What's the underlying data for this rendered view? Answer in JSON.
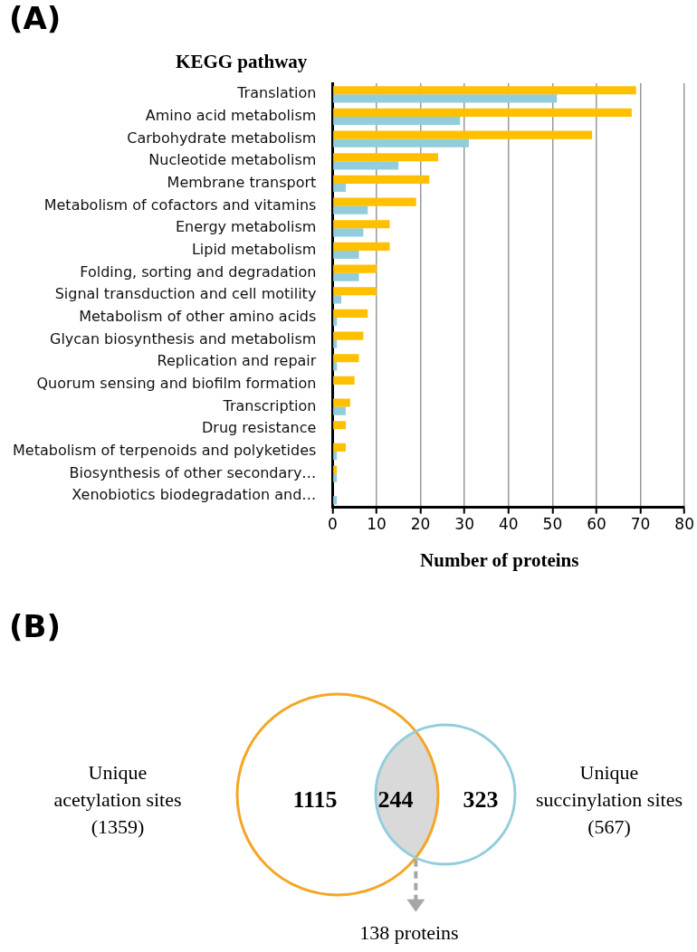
{
  "chart_data": [
    {
      "type": "bar",
      "orientation": "horizontal",
      "title": "(A)",
      "ylabel": "KEGG pathway",
      "xlabel": "Number of proteins",
      "categories": [
        "Translation",
        "Amino acid metabolism",
        "Carbohydrate metabolism",
        "Nucleotide metabolism",
        "Membrane transport",
        "Metabolism of cofactors and vitamins",
        "Energy metabolism",
        "Lipid metabolism",
        "Folding, sorting and degradation",
        "Signal transduction and cell motility",
        "Metabolism of other amino acids",
        "Glycan biosynthesis and metabolism",
        "Replication and repair",
        "Quorum sensing and biofilm formation",
        "Transcription",
        "Drug resistance",
        "Metabolism of terpenoids and polyketides",
        "Biosynthesis of other secondary…",
        "Xenobiotics biodegradation and…"
      ],
      "series": [
        {
          "color": "#ffc000",
          "values": [
            69,
            68,
            59,
            24,
            22,
            19,
            13,
            13,
            10,
            10,
            8,
            7,
            6,
            5,
            4,
            3,
            3,
            1,
            0
          ]
        },
        {
          "color": "#92cddc",
          "values": [
            51,
            29,
            31,
            15,
            3,
            8,
            7,
            6,
            6,
            2,
            1,
            1,
            1,
            0,
            3,
            0,
            1,
            1,
            1
          ]
        }
      ],
      "xlim": [
        0,
        80
      ],
      "xticks": [
        0,
        10,
        20,
        30,
        40,
        50,
        60,
        70,
        80
      ],
      "grid": "x",
      "legend": false
    },
    {
      "type": "other",
      "title": "(B)",
      "annotations": [
        "Unique",
        "acetylation sites",
        "(1359)",
        "1115",
        "244",
        "323",
        "Unique",
        "succinylation sites",
        "(567)",
        "138 proteins"
      ]
    }
  ]
}
